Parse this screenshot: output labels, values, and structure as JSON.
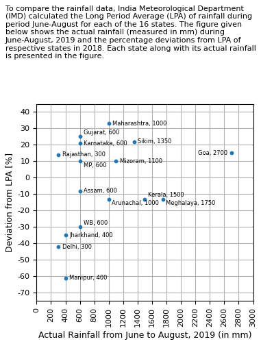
{
  "chart_data": {
    "type": "scatter",
    "title": "To compare the rainfall data, India Meteorological Department (IMD) calculated the Long Period Average (LPA) of rainfall during period June-August for each of the 16 states. The figure given below shows the actual rainfall (measured in mm) during June-August, 2019 and the percentage deviations from LPA of respective states in 2018. Each state along with its actual rainfall is presented in the figure.",
    "x_label": "Actual Rainfall from June to August, 2019 (in mm)",
    "y_label": "Deviation from LPA [%]",
    "x": [
      1000,
      600,
      600,
      1350,
      300,
      600,
      1100,
      2700,
      600,
      1000,
      1500,
      1750,
      600,
      400,
      300,
      400
    ],
    "values": [
      33,
      25,
      21,
      22,
      14,
      10,
      10,
      15,
      -8,
      -13,
      -13,
      -13,
      -30,
      -35,
      -42,
      -61
    ],
    "point_labels": [
      "Maharashtra, 1000",
      "Gujarat, 600",
      "Karnataka, 600",
      "Sikim, 1350",
      "Rajasthan, 300",
      "MP, 600",
      "Mizoram, 1100",
      "Goa, 2700",
      "Assam, 600",
      "Arunachal, 1000",
      "Kerala, 1500",
      "Meghalaya, 1750",
      "WB, 600",
      "Jharkhand, 400",
      "Delhi, 300",
      "Manipur, 400"
    ],
    "xlim": [
      0,
      3000
    ],
    "ylim": [
      -75,
      45
    ],
    "xticks": [
      0,
      200,
      400,
      600,
      800,
      1000,
      1200,
      1400,
      1600,
      1800,
      2000,
      2200,
      2400,
      2600,
      2800,
      3000
    ],
    "yticks": [
      -70,
      -60,
      -50,
      -40,
      -30,
      -20,
      -10,
      0,
      10,
      20,
      30,
      40
    ],
    "grid": true
  }
}
